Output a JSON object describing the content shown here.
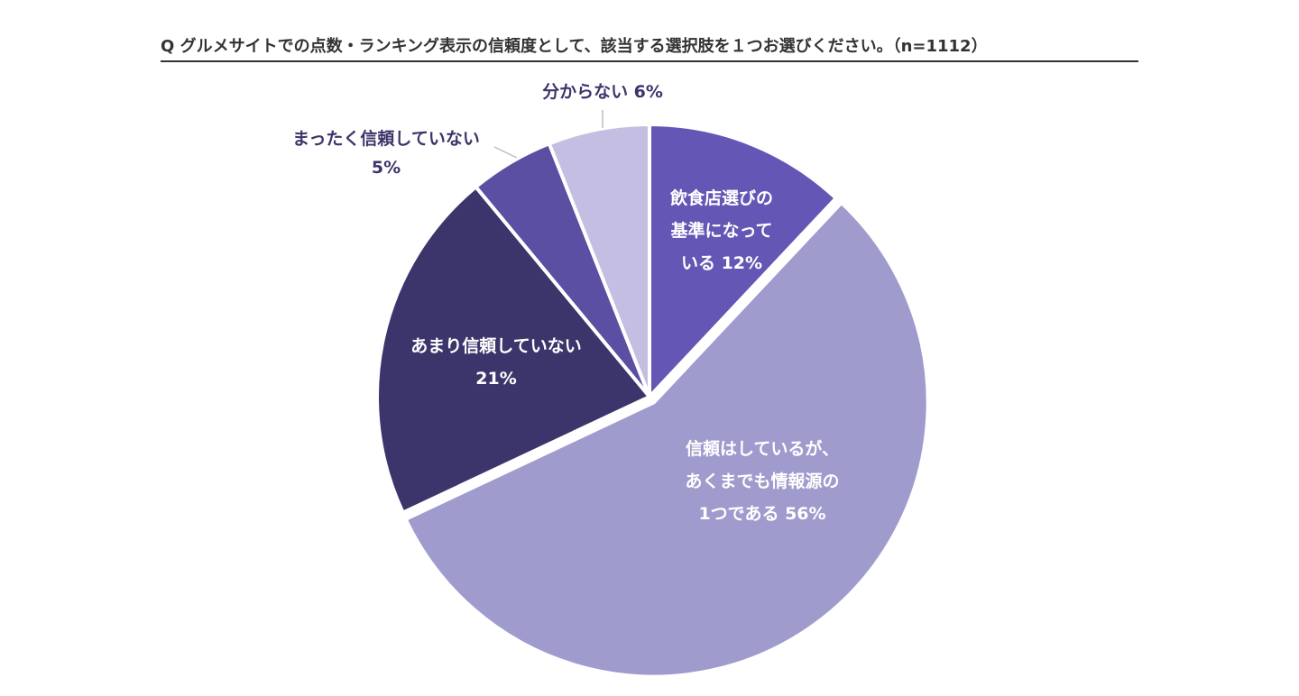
{
  "title": "Q グルメサイトでの点数・ランキング表示の信頼度として、該当する選択肢を１つお選びください。（n=1112）",
  "chart_data": {
    "type": "pie",
    "title": "Q グルメサイトでの点数・ランキング表示の信頼度として、該当する選択肢を１つお選びください。（n=1112）",
    "n": 1112,
    "slices": [
      {
        "key": "kijun",
        "label_lines": [
          "飲食店選びの",
          "基準になって",
          "いる 12%"
        ],
        "value": 12,
        "color": "#6356b5",
        "text_color": "#ffffff"
      },
      {
        "key": "joho",
        "label_lines": [
          "信頼はしているが、",
          "あくまでも情報源の",
          "1つである 56%"
        ],
        "value": 56,
        "color": "#a09bcd",
        "text_color": "#ffffff"
      },
      {
        "key": "amari",
        "label_lines": [
          "あまり信頼していない",
          "21%"
        ],
        "value": 21,
        "color": "#3c356b",
        "text_color": "#ffffff"
      },
      {
        "key": "mattaku",
        "label_lines": [
          "まったく信頼していない",
          "5%"
        ],
        "value": 5,
        "color": "#5a4fa2",
        "text_color": "#3c356b"
      },
      {
        "key": "wakaranai",
        "label_lines": [
          "分からない 6%"
        ],
        "value": 6,
        "color": "#c4bfe2",
        "text_color": "#3c356b"
      }
    ],
    "start_angle_deg": 0,
    "direction": "clockwise"
  }
}
